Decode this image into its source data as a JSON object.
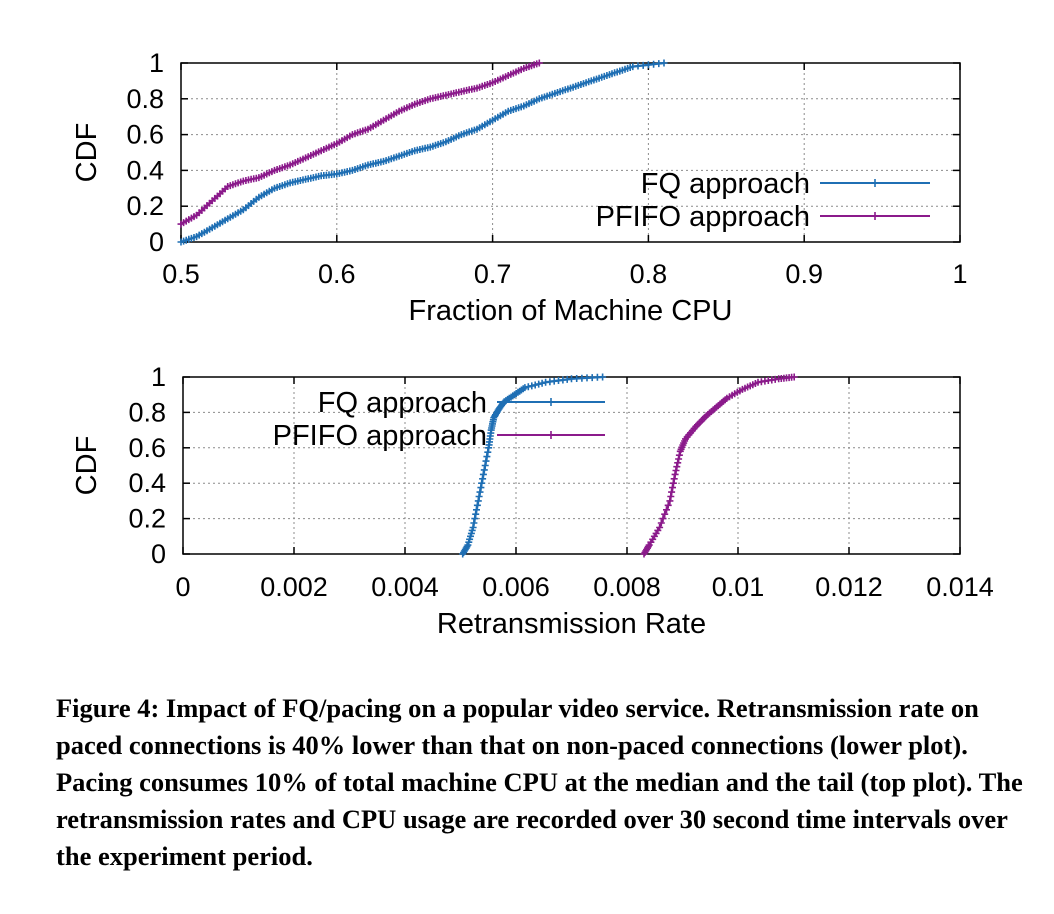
{
  "chart_data": [
    {
      "type": "line",
      "subtype": "cdf",
      "xlabel": "Fraction of Machine CPU",
      "ylabel": "CDF",
      "xlim": [
        0.5,
        1
      ],
      "ylim": [
        0,
        1
      ],
      "xticks": [
        "0.5",
        "0.6",
        "0.7",
        "0.8",
        "0.9",
        "1"
      ],
      "yticks": [
        "0",
        "0.2",
        "0.4",
        "0.6",
        "0.8",
        "1"
      ],
      "grid": true,
      "legend_position": "bottom-right",
      "series": [
        {
          "name": "FQ approach",
          "color": "#1f6fb4",
          "points": [
            [
              0.5,
              0.0
            ],
            [
              0.51,
              0.03
            ],
            [
              0.52,
              0.08
            ],
            [
              0.53,
              0.13
            ],
            [
              0.54,
              0.18
            ],
            [
              0.55,
              0.25
            ],
            [
              0.56,
              0.3
            ],
            [
              0.57,
              0.33
            ],
            [
              0.58,
              0.35
            ],
            [
              0.59,
              0.37
            ],
            [
              0.6,
              0.38
            ],
            [
              0.61,
              0.4
            ],
            [
              0.62,
              0.43
            ],
            [
              0.63,
              0.45
            ],
            [
              0.64,
              0.48
            ],
            [
              0.65,
              0.51
            ],
            [
              0.66,
              0.53
            ],
            [
              0.67,
              0.56
            ],
            [
              0.68,
              0.6
            ],
            [
              0.69,
              0.63
            ],
            [
              0.7,
              0.68
            ],
            [
              0.71,
              0.73
            ],
            [
              0.72,
              0.76
            ],
            [
              0.73,
              0.8
            ],
            [
              0.74,
              0.83
            ],
            [
              0.75,
              0.86
            ],
            [
              0.76,
              0.89
            ],
            [
              0.77,
              0.92
            ],
            [
              0.78,
              0.95
            ],
            [
              0.79,
              0.98
            ],
            [
              0.81,
              1.0
            ]
          ]
        },
        {
          "name": "PFIFO approach",
          "color": "#8b1a8b",
          "points": [
            [
              0.5,
              0.1
            ],
            [
              0.51,
              0.15
            ],
            [
              0.52,
              0.23
            ],
            [
              0.53,
              0.31
            ],
            [
              0.54,
              0.34
            ],
            [
              0.55,
              0.36
            ],
            [
              0.56,
              0.4
            ],
            [
              0.57,
              0.43
            ],
            [
              0.58,
              0.47
            ],
            [
              0.59,
              0.51
            ],
            [
              0.6,
              0.55
            ],
            [
              0.61,
              0.6
            ],
            [
              0.62,
              0.63
            ],
            [
              0.63,
              0.68
            ],
            [
              0.64,
              0.73
            ],
            [
              0.65,
              0.77
            ],
            [
              0.66,
              0.8
            ],
            [
              0.67,
              0.82
            ],
            [
              0.68,
              0.84
            ],
            [
              0.69,
              0.86
            ],
            [
              0.7,
              0.89
            ],
            [
              0.71,
              0.93
            ],
            [
              0.72,
              0.97
            ],
            [
              0.73,
              1.0
            ]
          ]
        }
      ]
    },
    {
      "type": "line",
      "subtype": "cdf",
      "xlabel": "Retransmission Rate",
      "ylabel": "CDF",
      "xlim": [
        0,
        0.015
      ],
      "ylim": [
        0,
        1
      ],
      "xticks": [
        "0",
        "0.002",
        "0.004",
        "0.006",
        "0.008",
        "0.01",
        "0.012",
        "0.014"
      ],
      "yticks": [
        "0",
        "0.2",
        "0.4",
        "0.6",
        "0.8",
        "1"
      ],
      "grid": true,
      "legend_position": "top-left",
      "series": [
        {
          "name": "FQ approach",
          "color": "#1f6fb4",
          "points": [
            [
              0.0054,
              0.0
            ],
            [
              0.0055,
              0.05
            ],
            [
              0.0056,
              0.15
            ],
            [
              0.0057,
              0.3
            ],
            [
              0.0058,
              0.45
            ],
            [
              0.0059,
              0.6
            ],
            [
              0.00595,
              0.7
            ],
            [
              0.006,
              0.77
            ],
            [
              0.0061,
              0.82
            ],
            [
              0.0062,
              0.86
            ],
            [
              0.0064,
              0.9
            ],
            [
              0.0066,
              0.94
            ],
            [
              0.007,
              0.97
            ],
            [
              0.0075,
              0.99
            ],
            [
              0.0081,
              1.0
            ]
          ]
        },
        {
          "name": "PFIFO approach",
          "color": "#8b1a8b",
          "points": [
            [
              0.0089,
              0.0
            ],
            [
              0.009,
              0.05
            ],
            [
              0.0092,
              0.15
            ],
            [
              0.0094,
              0.3
            ],
            [
              0.0095,
              0.45
            ],
            [
              0.0096,
              0.58
            ],
            [
              0.0097,
              0.65
            ],
            [
              0.0099,
              0.72
            ],
            [
              0.0101,
              0.78
            ],
            [
              0.0103,
              0.83
            ],
            [
              0.0105,
              0.88
            ],
            [
              0.0108,
              0.93
            ],
            [
              0.0111,
              0.97
            ],
            [
              0.0115,
              0.99
            ],
            [
              0.0118,
              1.0
            ]
          ]
        }
      ]
    }
  ],
  "caption": "Figure 4: Impact of FQ/pacing on a popular video service. Retransmission rate on paced connections is 40% lower than that on non-paced connections (lower plot). Pacing consumes 10% of total machine CPU at the median and the tail (top plot). The retransmission rates and CPU usage are recorded over 30 second time intervals over the experiment period."
}
